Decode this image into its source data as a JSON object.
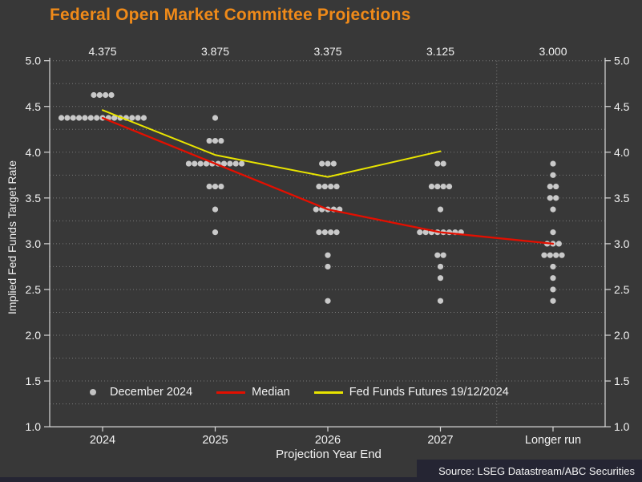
{
  "chart_data": {
    "type": "scatter",
    "subtype": "fomc-dot-plot",
    "title": "Federal Open Market Committee Projections",
    "xlabel": "Projection Year End",
    "ylabel": "Implied Fed Funds Target Rate",
    "source": "Source: LSEG Datastream/ABC Securities",
    "ylim": [
      1.0,
      5.0
    ],
    "ytick_step": 0.5,
    "grid_step": 0.25,
    "grid": true,
    "legend_position": "bottom-inside",
    "categories": [
      "2024",
      "2025",
      "2026",
      "2027",
      "Longer run"
    ],
    "median_top_labels": [
      "4.375",
      "3.875",
      "3.375",
      "3.125",
      "3.000"
    ],
    "dot_distribution": [
      {
        "category": "2024",
        "points": [
          {
            "rate": 4.625,
            "count": 4
          },
          {
            "rate": 4.375,
            "count": 15
          }
        ]
      },
      {
        "category": "2025",
        "points": [
          {
            "rate": 4.375,
            "count": 1
          },
          {
            "rate": 4.125,
            "count": 3
          },
          {
            "rate": 3.875,
            "count": 10
          },
          {
            "rate": 3.625,
            "count": 3
          },
          {
            "rate": 3.375,
            "count": 1
          },
          {
            "rate": 3.125,
            "count": 1
          }
        ]
      },
      {
        "category": "2026",
        "points": [
          {
            "rate": 3.875,
            "count": 3
          },
          {
            "rate": 3.625,
            "count": 4
          },
          {
            "rate": 3.375,
            "count": 5
          },
          {
            "rate": 3.125,
            "count": 4
          },
          {
            "rate": 2.875,
            "count": 1
          },
          {
            "rate": 2.75,
            "count": 1
          },
          {
            "rate": 2.375,
            "count": 1
          }
        ]
      },
      {
        "category": "2027",
        "points": [
          {
            "rate": 3.875,
            "count": 2
          },
          {
            "rate": 3.625,
            "count": 4
          },
          {
            "rate": 3.375,
            "count": 1
          },
          {
            "rate": 3.125,
            "count": 8
          },
          {
            "rate": 2.875,
            "count": 2
          },
          {
            "rate": 2.75,
            "count": 1
          },
          {
            "rate": 2.625,
            "count": 1
          },
          {
            "rate": 2.375,
            "count": 1
          }
        ]
      },
      {
        "category": "Longer run",
        "points": [
          {
            "rate": 3.875,
            "count": 1
          },
          {
            "rate": 3.75,
            "count": 1
          },
          {
            "rate": 3.625,
            "count": 2
          },
          {
            "rate": 3.5,
            "count": 2
          },
          {
            "rate": 3.375,
            "count": 1
          },
          {
            "rate": 3.125,
            "count": 1
          },
          {
            "rate": 3.0,
            "count": 3
          },
          {
            "rate": 2.875,
            "count": 4
          },
          {
            "rate": 2.75,
            "count": 1
          },
          {
            "rate": 2.625,
            "count": 1
          },
          {
            "rate": 2.5,
            "count": 1
          },
          {
            "rate": 2.375,
            "count": 1
          }
        ]
      }
    ],
    "series": [
      {
        "name": "Median",
        "type": "line",
        "color": "#e30f00",
        "values": [
          4.375,
          3.875,
          3.375,
          3.125,
          3.0
        ]
      },
      {
        "name": "Fed Funds Futures 19/12/2024",
        "type": "line",
        "color": "#e8e400",
        "values": [
          4.46,
          3.97,
          3.73,
          4.01,
          null
        ]
      }
    ],
    "colors": {
      "background": "#383838",
      "title": "#ef8a19",
      "text": "#f2f2f2",
      "grid": "rgba(255,255,255,0.33)",
      "axis": "#d9d9d9",
      "dots": "#c9c9c9",
      "median": "#e30f00",
      "futures": "#e8e400",
      "footer_bar": "#252533"
    }
  },
  "legend": {
    "items": [
      {
        "label": "December 2024",
        "marker": "dot",
        "color": "#c2c2c2"
      },
      {
        "label": "Median",
        "marker": "line",
        "color": "#e30f00"
      },
      {
        "label": "Fed Funds Futures 19/12/2024",
        "marker": "line",
        "color": "#e8e400"
      }
    ]
  }
}
